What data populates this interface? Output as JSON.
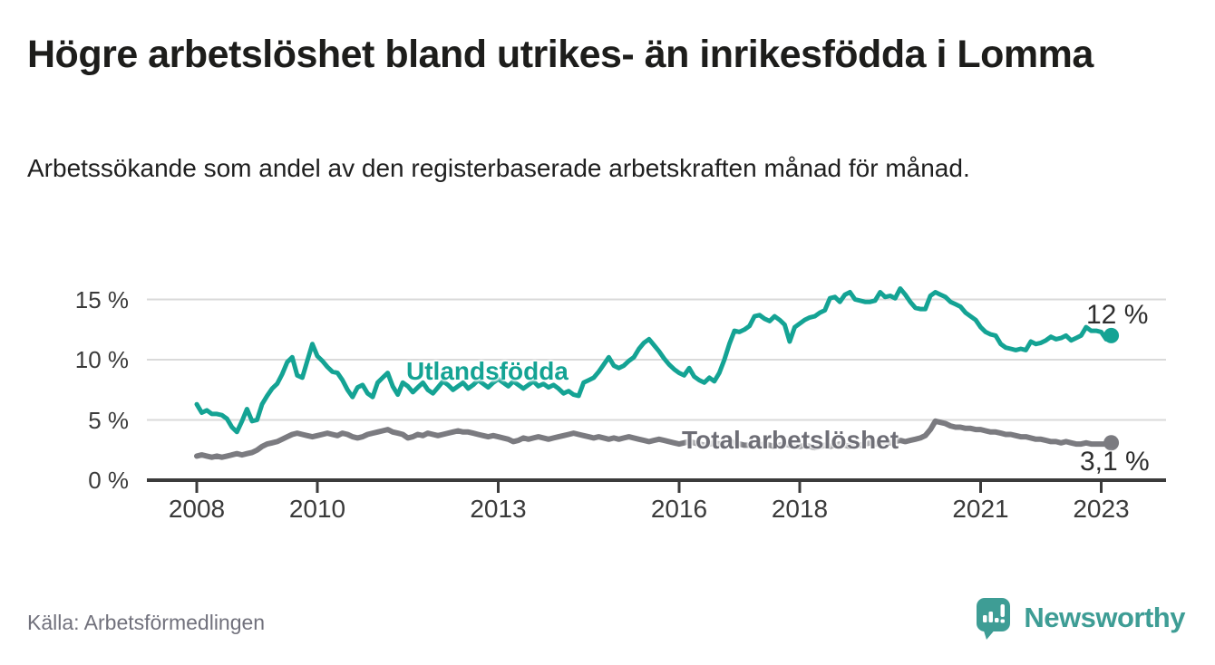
{
  "title": "Högre arbetslöshet bland utrikes- än inrikesfödda i Lomma",
  "subtitle": "Arbetssökande som andel av den registerbaserade arbetskraften månad för månad.",
  "source": "Källa: Arbetsförmedlingen",
  "branding": {
    "name": "Newsworthy",
    "icon": "speech-bubble-bar-chart-icon",
    "color": "#3e9d95"
  },
  "colors": {
    "foreign_born_line": "#14a394",
    "total_line": "#7b7b80",
    "axis": "#3b3b3b",
    "gridline": "#dadada",
    "title_text": "#1d1d1b",
    "series_label_gray": "#6e6e76",
    "value_label": "#2e2e2e",
    "source_text": "#71717c",
    "background": "#ffffff"
  },
  "chart_data": {
    "type": "line",
    "frequency": "monthly",
    "start": {
      "year": 2008,
      "month": 1
    },
    "end": {
      "year": 2023,
      "month": 3
    },
    "grid": true,
    "y_axis": {
      "ticks": [
        0,
        5,
        10,
        15
      ],
      "tick_labels": [
        "0 %",
        "5 %",
        "10 %",
        "15 %"
      ],
      "range": [
        0,
        16.5
      ]
    },
    "x_axis": {
      "tick_years": [
        2008,
        2010,
        2013,
        2016,
        2018,
        2021,
        2023
      ],
      "tick_labels": [
        "2008",
        "2010",
        "2013",
        "2016",
        "2018",
        "2021",
        "2023"
      ]
    },
    "series": [
      {
        "name": "Utlandsfödda",
        "end_value_label": "12 %",
        "end_value": 12,
        "color": "#14a394",
        "values": [
          6.3,
          5.6,
          5.8,
          5.5,
          5.5,
          5.4,
          5.1,
          4.4,
          4.0,
          4.9,
          5.9,
          4.9,
          5.0,
          6.3,
          7.0,
          7.6,
          8.0,
          8.8,
          9.8,
          10.2,
          8.7,
          8.5,
          9.9,
          11.3,
          10.3,
          9.9,
          9.4,
          9.0,
          8.9,
          8.3,
          7.5,
          6.9,
          7.7,
          7.9,
          7.2,
          6.9,
          8.1,
          8.5,
          8.9,
          7.8,
          7.1,
          8.1,
          7.8,
          7.3,
          7.7,
          8.1,
          7.5,
          7.2,
          7.7,
          8.2,
          7.9,
          7.5,
          7.8,
          8.1,
          7.6,
          7.9,
          8.3,
          8.0,
          7.7,
          8.1,
          8.4,
          8.1,
          7.8,
          8.2,
          7.9,
          7.6,
          7.9,
          8.2,
          7.8,
          8.0,
          7.7,
          7.9,
          7.6,
          7.2,
          7.4,
          7.1,
          7.0,
          8.1,
          8.3,
          8.5,
          9.0,
          9.6,
          10.2,
          9.5,
          9.3,
          9.5,
          9.9,
          10.2,
          10.9,
          11.4,
          11.7,
          11.2,
          10.7,
          10.1,
          9.6,
          9.2,
          8.9,
          8.7,
          9.3,
          8.6,
          8.3,
          8.1,
          8.5,
          8.2,
          8.9,
          10.0,
          11.3,
          12.4,
          12.3,
          12.5,
          12.8,
          13.6,
          13.7,
          13.4,
          13.2,
          13.6,
          13.3,
          12.9,
          11.5,
          12.7,
          13.0,
          13.3,
          13.5,
          13.6,
          13.9,
          14.1,
          15.1,
          15.2,
          14.8,
          15.4,
          15.6,
          15.0,
          14.9,
          14.8,
          14.8,
          14.9,
          15.6,
          15.2,
          15.3,
          15.1,
          15.9,
          15.4,
          14.8,
          14.3,
          14.2,
          14.2,
          15.3,
          15.6,
          15.4,
          15.2,
          14.8,
          14.6,
          14.4,
          13.9,
          13.6,
          13.3,
          12.7,
          12.3,
          12.1,
          12.0,
          11.3,
          11.0,
          10.9,
          10.8,
          10.9,
          10.8,
          11.5,
          11.3,
          11.4,
          11.6,
          11.9,
          11.7,
          11.8,
          12.0,
          11.6,
          11.8,
          12.0,
          12.7,
          12.4,
          12.4,
          12.3,
          11.7,
          12.0
        ]
      },
      {
        "name": "Total arbetslöshet",
        "end_value_label": "3,1 %",
        "end_value": 3.1,
        "color": "#7b7b80",
        "values": [
          2.0,
          2.1,
          2.0,
          1.9,
          2.0,
          1.9,
          2.0,
          2.1,
          2.2,
          2.1,
          2.2,
          2.3,
          2.5,
          2.8,
          3.0,
          3.1,
          3.2,
          3.4,
          3.6,
          3.8,
          3.9,
          3.8,
          3.7,
          3.6,
          3.7,
          3.8,
          3.9,
          3.8,
          3.7,
          3.9,
          3.8,
          3.6,
          3.5,
          3.6,
          3.8,
          3.9,
          4.0,
          4.1,
          4.2,
          4.0,
          3.9,
          3.8,
          3.5,
          3.6,
          3.8,
          3.7,
          3.9,
          3.8,
          3.7,
          3.8,
          3.9,
          4.0,
          4.1,
          4.0,
          4.0,
          3.9,
          3.8,
          3.7,
          3.6,
          3.7,
          3.6,
          3.5,
          3.4,
          3.2,
          3.3,
          3.5,
          3.4,
          3.5,
          3.6,
          3.5,
          3.4,
          3.5,
          3.6,
          3.7,
          3.8,
          3.9,
          3.8,
          3.7,
          3.6,
          3.5,
          3.6,
          3.5,
          3.4,
          3.5,
          3.4,
          3.5,
          3.6,
          3.5,
          3.4,
          3.3,
          3.2,
          3.3,
          3.4,
          3.3,
          3.2,
          3.1,
          3.0,
          3.1,
          3.2,
          3.1,
          3.0,
          2.9,
          3.0,
          3.1,
          3.0,
          3.1,
          3.2,
          3.1,
          3.0,
          2.9,
          2.9,
          2.8,
          2.9,
          3.0,
          2.9,
          2.8,
          2.9,
          3.0,
          2.9,
          2.8,
          2.8,
          2.9,
          2.8,
          2.7,
          2.8,
          2.9,
          2.8,
          2.9,
          3.0,
          2.9,
          2.8,
          2.9,
          2.9,
          3.0,
          3.1,
          3.0,
          3.1,
          3.2,
          3.1,
          3.2,
          3.3,
          3.2,
          3.3,
          3.4,
          3.5,
          3.7,
          4.2,
          4.9,
          4.8,
          4.7,
          4.5,
          4.4,
          4.4,
          4.3,
          4.3,
          4.2,
          4.2,
          4.1,
          4.0,
          4.0,
          3.9,
          3.8,
          3.8,
          3.7,
          3.6,
          3.6,
          3.5,
          3.4,
          3.4,
          3.3,
          3.2,
          3.2,
          3.1,
          3.2,
          3.1,
          3.0,
          3.0,
          3.1,
          3.0,
          3.0,
          3.0,
          3.0,
          3.1
        ]
      }
    ]
  }
}
